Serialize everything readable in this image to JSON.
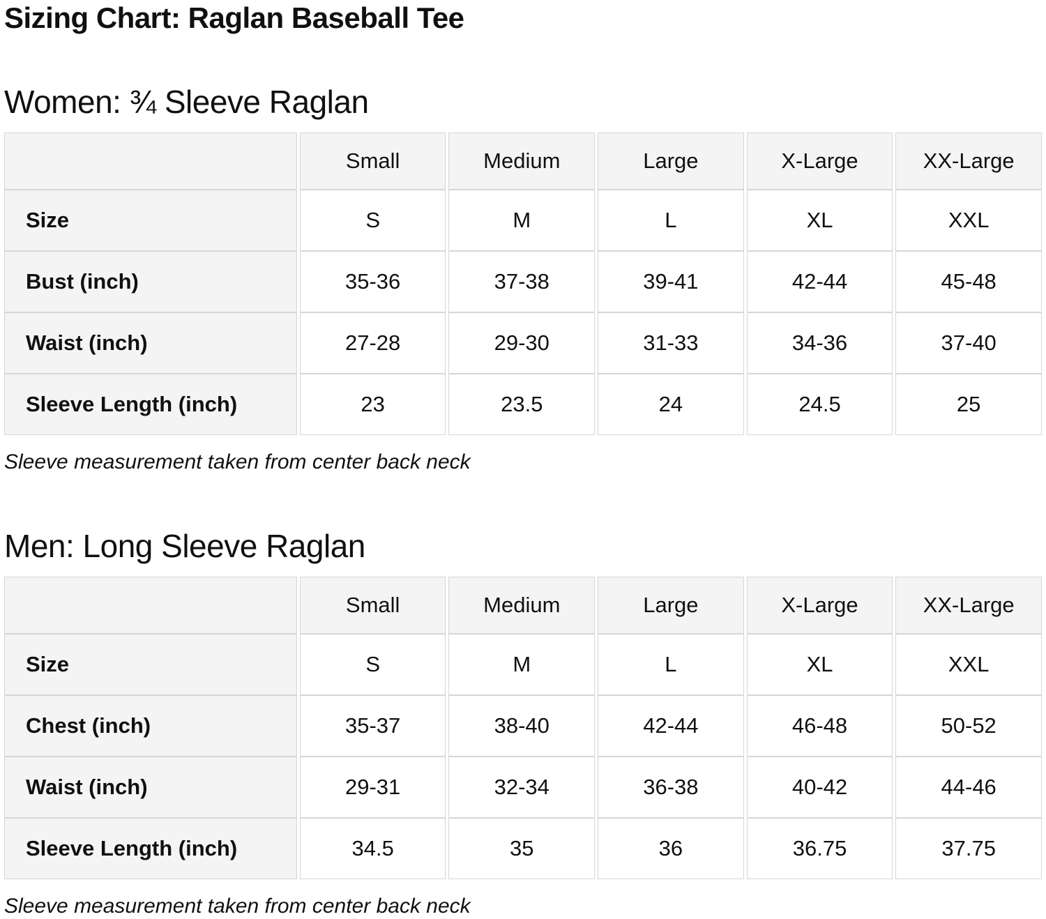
{
  "page": {
    "title": "Sizing Chart: Raglan Baseball Tee"
  },
  "colors": {
    "header_bg": "#f4f4f4",
    "cell_bg": "#ffffff",
    "border": "#d6d6d6",
    "text": "#0f1111"
  },
  "sections": [
    {
      "id": "women",
      "heading": "Women: ¾ Sleeve Raglan",
      "note": "Sleeve measurement taken from center back neck",
      "table": {
        "column_headers": [
          "",
          "Small",
          "Medium",
          "Large",
          "X-Large",
          "XX-Large"
        ],
        "rows": [
          {
            "label": "Size",
            "values": [
              "S",
              "M",
              "L",
              "XL",
              "XXL"
            ]
          },
          {
            "label": "Bust (inch)",
            "values": [
              "35-36",
              "37-38",
              "39-41",
              "42-44",
              "45-48"
            ]
          },
          {
            "label": "Waist (inch)",
            "values": [
              "27-28",
              "29-30",
              "31-33",
              "34-36",
              "37-40"
            ]
          },
          {
            "label": "Sleeve Length (inch)",
            "values": [
              "23",
              "23.5",
              "24",
              "24.5",
              "25"
            ]
          }
        ]
      }
    },
    {
      "id": "men",
      "heading": "Men: Long Sleeve Raglan",
      "note": "Sleeve measurement taken from center back neck",
      "table": {
        "column_headers": [
          "",
          "Small",
          "Medium",
          "Large",
          "X-Large",
          "XX-Large"
        ],
        "rows": [
          {
            "label": "Size",
            "values": [
              "S",
              "M",
              "L",
              "XL",
              "XXL"
            ]
          },
          {
            "label": "Chest (inch)",
            "values": [
              "35-37",
              "38-40",
              "42-44",
              "46-48",
              "50-52"
            ]
          },
          {
            "label": "Waist (inch)",
            "values": [
              "29-31",
              "32-34",
              "36-38",
              "40-42",
              "44-46"
            ]
          },
          {
            "label": "Sleeve Length (inch)",
            "values": [
              "34.5",
              "35",
              "36",
              "36.75",
              "37.75"
            ]
          }
        ]
      }
    }
  ]
}
